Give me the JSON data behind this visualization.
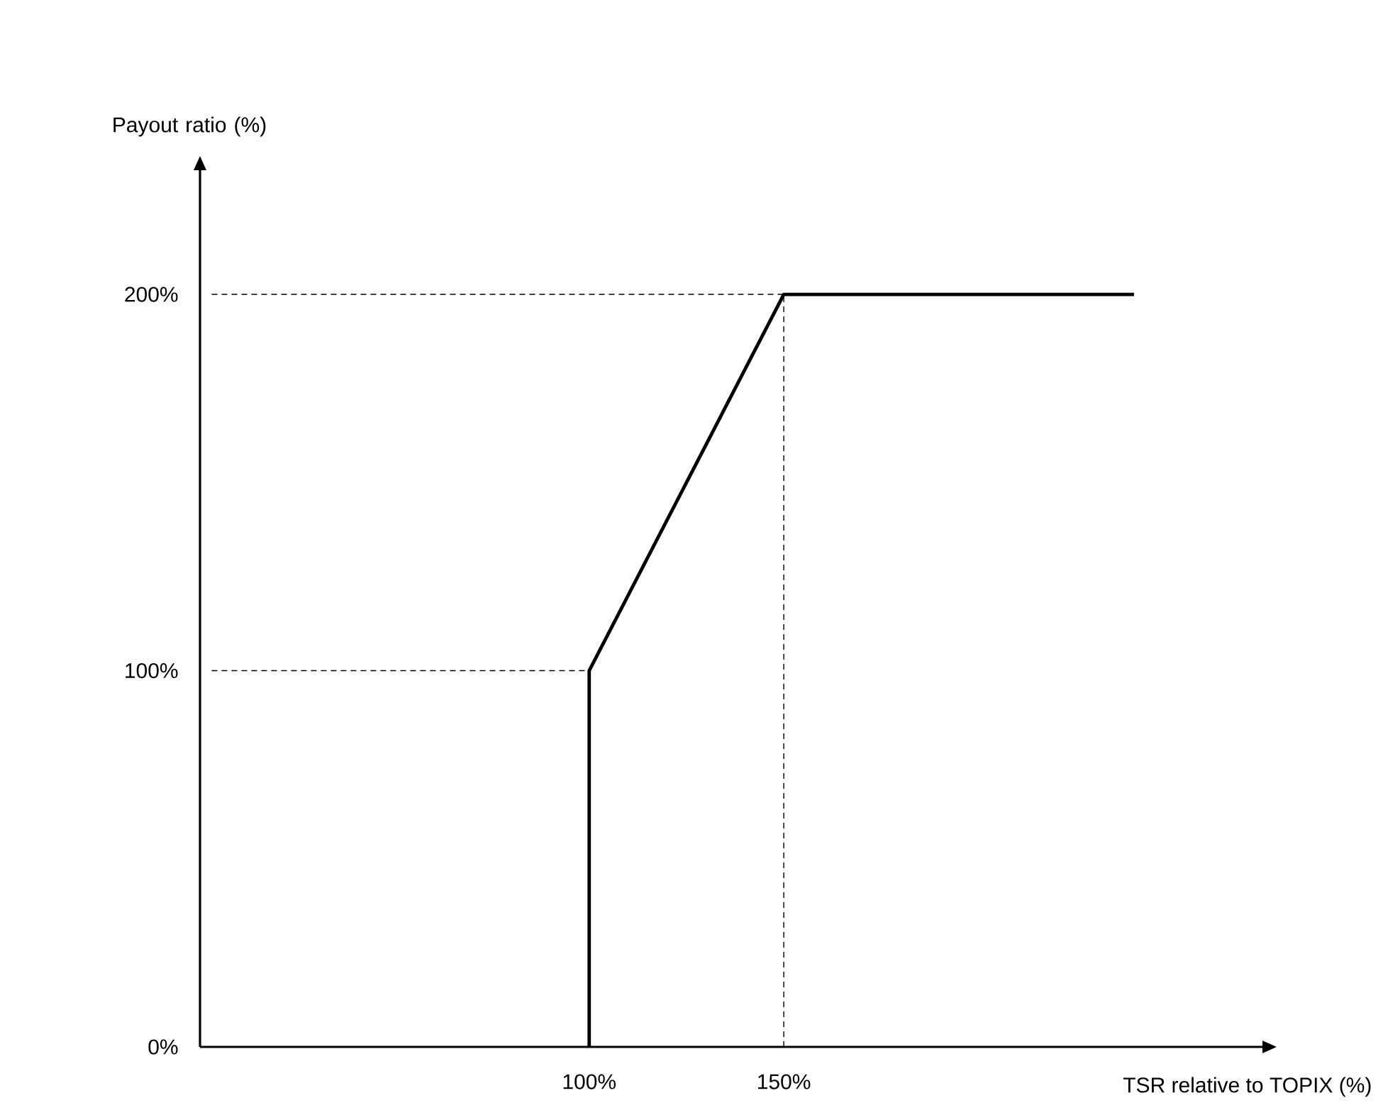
{
  "chart_data": {
    "type": "line",
    "xlabel": "TSR relative to TOPIX (%)",
    "ylabel": "Payout ratio (%)",
    "x": [
      100,
      100,
      150,
      240
    ],
    "series": [
      {
        "color": "#000000",
        "values": [
          0,
          100,
          200,
          200
        ]
      }
    ],
    "xlim": [
      0,
      273
    ],
    "ylim": [
      0,
      233
    ],
    "xticks": [
      {
        "value": 100,
        "label": "100%"
      },
      {
        "value": 150,
        "label": "150%"
      }
    ],
    "yticks": [
      {
        "value": 0,
        "label": "0%"
      },
      {
        "value": 100,
        "label": "100%"
      },
      {
        "value": 200,
        "label": "200%"
      }
    ],
    "ref_lines": [
      {
        "axis": "y",
        "value": 100,
        "line_style": "dashed",
        "color": "#000000"
      },
      {
        "axis": "y",
        "value": 200,
        "line_style": "dashed",
        "color": "#000000"
      },
      {
        "axis": "x",
        "value": 150,
        "line_style": "dashed",
        "color": "#000000"
      }
    ]
  }
}
